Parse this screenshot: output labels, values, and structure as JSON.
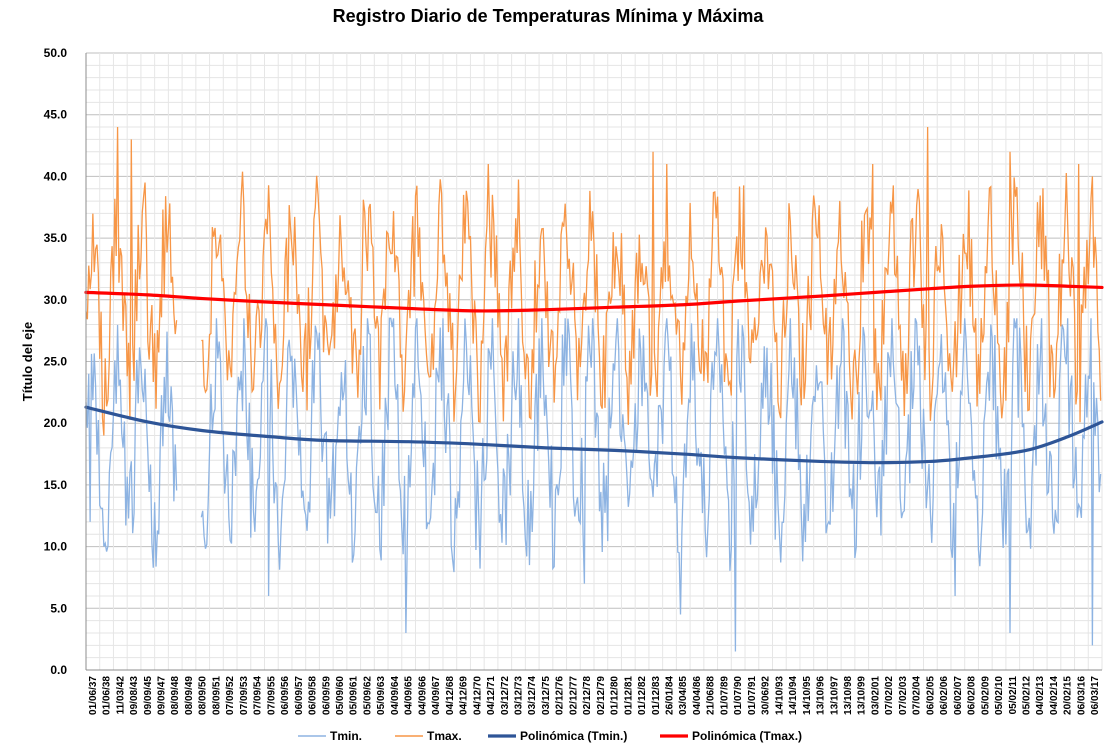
{
  "chart_data": {
    "type": "line",
    "title": "Registro Diario de Temperaturas Mínima y Máxima",
    "xlabel": "",
    "ylabel": "Título del eje",
    "ylim": [
      0,
      50
    ],
    "yticks": [
      "0.0",
      "5.0",
      "10.0",
      "15.0",
      "20.0",
      "25.0",
      "30.0",
      "35.0",
      "40.0",
      "45.0",
      "50.0"
    ],
    "grid": true,
    "legend": "bottom",
    "x_categories": [
      "01/06/37",
      "01/06/38",
      "11/03/42",
      "09/08/43",
      "09/09/45",
      "09/09/47",
      "08/09/48",
      "08/09/49",
      "08/09/50",
      "08/09/51",
      "07/09/52",
      "07/09/53",
      "07/09/54",
      "07/09/55",
      "06/09/56",
      "06/09/57",
      "06/09/58",
      "06/09/59",
      "05/09/60",
      "05/09/61",
      "05/09/62",
      "05/09/63",
      "04/09/64",
      "04/09/65",
      "04/09/66",
      "04/09/67",
      "04/12/68",
      "04/12/69",
      "04/12/70",
      "04/12/71",
      "03/12/72",
      "03/12/73",
      "03/12/74",
      "03/12/75",
      "02/12/76",
      "02/12/77",
      "02/12/78",
      "02/12/79",
      "01/12/80",
      "01/12/81",
      "01/12/82",
      "01/12/83",
      "26/01/84",
      "03/04/85",
      "04/04/86",
      "21/06/88",
      "01/07/89",
      "01/07/90",
      "01/07/91",
      "30/06/92",
      "14/10/93",
      "14/10/94",
      "14/10/95",
      "13/10/96",
      "13/10/97",
      "13/10/98",
      "13/10/99",
      "03/02/01",
      "07/02/02",
      "07/02/03",
      "07/02/04",
      "06/02/05",
      "06/02/06",
      "06/02/07",
      "06/02/08",
      "05/02/09",
      "05/02/10",
      "05/02/11",
      "05/02/12",
      "04/02/13",
      "04/02/14",
      "20/02/15",
      "06/03/16",
      "06/03/17"
    ],
    "series": [
      {
        "name": "Tmin.",
        "color": "#8db3e2",
        "style": "daily series (seasonal oscillation)",
        "typical_range": [
          10,
          28
        ],
        "extremes": [
          {
            "x": "01/06/37",
            "y": 12.0
          },
          {
            "x": "01/06/38",
            "y": 10.0
          },
          {
            "x": "09/09/47",
            "y": 11.0
          },
          {
            "x": "08/09/50",
            "y": 9.0
          },
          {
            "x": "07/09/55",
            "y": 6.0
          },
          {
            "x": "04/09/65",
            "y": 3.0
          },
          {
            "x": "02/12/78",
            "y": 7.0
          },
          {
            "x": "03/04/85",
            "y": 4.5
          },
          {
            "x": "01/07/90",
            "y": 1.5
          },
          {
            "x": "06/02/07",
            "y": 6.0
          },
          {
            "x": "05/02/11",
            "y": 3.0
          },
          {
            "x": "06/03/17",
            "y": 2.0
          }
        ]
      },
      {
        "name": "Tmax.",
        "color": "#f79646",
        "style": "daily series (seasonal oscillation)",
        "typical_range": [
          22,
          38
        ],
        "extremes": [
          {
            "x": "01/06/38",
            "y": 19.0
          },
          {
            "x": "11/03/42",
            "y": 44.0
          },
          {
            "x": "09/08/43",
            "y": 43.0
          },
          {
            "x": "09/09/45",
            "y": 39.5
          },
          {
            "x": "04/12/71",
            "y": 41.0
          },
          {
            "x": "01/12/83",
            "y": 42.0
          },
          {
            "x": "26/01/84",
            "y": 41.0
          },
          {
            "x": "03/02/01",
            "y": 41.0
          },
          {
            "x": "06/02/05",
            "y": 44.0
          },
          {
            "x": "05/02/11",
            "y": 42.0
          },
          {
            "x": "06/03/16",
            "y": 41.0
          },
          {
            "x": "06/03/17",
            "y": 40.0
          }
        ]
      },
      {
        "name": "Polinómica (Tmin.)",
        "color": "#2e5597",
        "type": "trendline",
        "points": [
          {
            "x": "01/06/37",
            "y": 21.3
          },
          {
            "x": "09/09/45",
            "y": 20.1
          },
          {
            "x": "08/09/50",
            "y": 19.4
          },
          {
            "x": "07/09/55",
            "y": 18.9
          },
          {
            "x": "06/09/59",
            "y": 18.6
          },
          {
            "x": "04/09/65",
            "y": 18.5
          },
          {
            "x": "04/12/70",
            "y": 18.3
          },
          {
            "x": "03/12/75",
            "y": 18.0
          },
          {
            "x": "01/12/80",
            "y": 17.8
          },
          {
            "x": "03/04/85",
            "y": 17.5
          },
          {
            "x": "01/07/90",
            "y": 17.2
          },
          {
            "x": "13/10/96",
            "y": 16.9
          },
          {
            "x": "03/02/01",
            "y": 16.8
          },
          {
            "x": "06/02/05",
            "y": 16.9
          },
          {
            "x": "06/02/08",
            "y": 17.2
          },
          {
            "x": "05/02/12",
            "y": 17.8
          },
          {
            "x": "20/02/15",
            "y": 18.9
          },
          {
            "x": "06/03/17",
            "y": 20.1
          }
        ]
      },
      {
        "name": "Polinómica (Tmax.)",
        "color": "#ff0000",
        "type": "trendline",
        "points": [
          {
            "x": "01/06/37",
            "y": 30.6
          },
          {
            "x": "09/09/45",
            "y": 30.4
          },
          {
            "x": "08/09/50",
            "y": 30.1
          },
          {
            "x": "07/09/55",
            "y": 29.8
          },
          {
            "x": "06/09/59",
            "y": 29.6
          },
          {
            "x": "04/09/65",
            "y": 29.3
          },
          {
            "x": "04/12/70",
            "y": 29.1
          },
          {
            "x": "03/12/75",
            "y": 29.2
          },
          {
            "x": "01/12/80",
            "y": 29.4
          },
          {
            "x": "03/04/85",
            "y": 29.6
          },
          {
            "x": "01/07/90",
            "y": 29.9
          },
          {
            "x": "13/10/96",
            "y": 30.3
          },
          {
            "x": "03/02/01",
            "y": 30.6
          },
          {
            "x": "06/02/05",
            "y": 30.9
          },
          {
            "x": "06/02/08",
            "y": 31.1
          },
          {
            "x": "05/02/12",
            "y": 31.2
          },
          {
            "x": "20/02/15",
            "y": 31.1
          },
          {
            "x": "06/03/17",
            "y": 31.0
          }
        ]
      }
    ],
    "missing_data_between": [
      "08/09/48",
      "08/09/50"
    ]
  }
}
